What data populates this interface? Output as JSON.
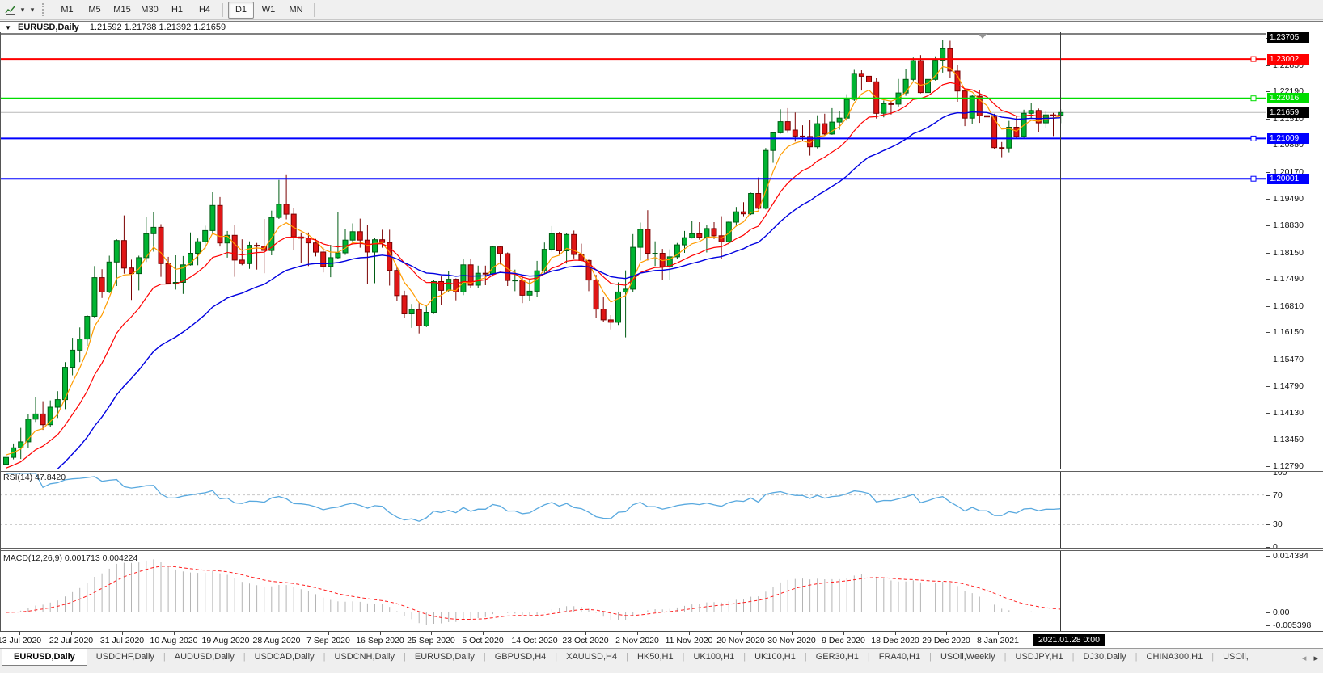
{
  "toolbar": {
    "timeframes": [
      {
        "label": "M1",
        "active": false
      },
      {
        "label": "M5",
        "active": false
      },
      {
        "label": "M15",
        "active": false
      },
      {
        "label": "M30",
        "active": false
      },
      {
        "label": "H1",
        "active": false
      },
      {
        "label": "H4",
        "active": false
      },
      {
        "label": "D1",
        "active": true
      },
      {
        "label": "W1",
        "active": false
      },
      {
        "label": "MN",
        "active": false
      }
    ]
  },
  "window": {
    "symbol": "EURUSD,Daily",
    "ohlc": "1.21592 1.21738 1.21392 1.21659"
  },
  "rsi": {
    "label": "RSI(14) 47.8420",
    "axis": [
      {
        "label": "100",
        "v": 100
      },
      {
        "label": "70",
        "v": 70
      },
      {
        "label": "30",
        "v": 30
      },
      {
        "label": "0",
        "v": 0
      }
    ],
    "levels": [
      70,
      30
    ]
  },
  "macd": {
    "label": "MACD(12,26,9) 0.001713 0.004224",
    "axis": [
      {
        "label": "0.014384",
        "v": 0.014384
      },
      {
        "label": "0.00",
        "v": 0
      },
      {
        "label": "-0.005398",
        "v": -0.005398
      }
    ]
  },
  "date_axis": {
    "labels": [
      "13 Jul 2020",
      "22 Jul 2020",
      "31 Jul 2020",
      "10 Aug 2020",
      "19 Aug 2020",
      "28 Aug 2020",
      "7 Sep 2020",
      "16 Sep 2020",
      "25 Sep 2020",
      "5 Oct 2020",
      "14 Oct 2020",
      "23 Oct 2020",
      "2 Nov 2020",
      "11 Nov 2020",
      "20 Nov 2020",
      "30 Nov 2020",
      "9 Dec 2020",
      "18 Dec 2020",
      "29 Dec 2020",
      "8 Jan 2021"
    ],
    "crosshair_label": "2021.01.28 0:00"
  },
  "tabs": [
    {
      "label": "EURUSD,Daily",
      "active": true
    },
    {
      "label": "USDCHF,Daily",
      "active": false
    },
    {
      "label": "AUDUSD,Daily",
      "active": false
    },
    {
      "label": "USDCAD,Daily",
      "active": false
    },
    {
      "label": "USDCNH,Daily",
      "active": false
    },
    {
      "label": "EURUSD,Daily",
      "active": false
    },
    {
      "label": "GBPUSD,H4",
      "active": false
    },
    {
      "label": "XAUUSD,H4",
      "active": false
    },
    {
      "label": "HK50,H1",
      "active": false
    },
    {
      "label": "UK100,H1",
      "active": false
    },
    {
      "label": "UK100,H1",
      "active": false
    },
    {
      "label": "GER30,H1",
      "active": false
    },
    {
      "label": "FRA40,H1",
      "active": false
    },
    {
      "label": "USOil,Weekly",
      "active": false
    },
    {
      "label": "USDJPY,H1",
      "active": false
    },
    {
      "label": "DJ30,Daily",
      "active": false
    },
    {
      "label": "CHINA300,H1",
      "active": false
    },
    {
      "label": "USOil,",
      "active": false
    }
  ],
  "tabs_nav": {
    "left": "◂",
    "right": "▸"
  },
  "colors": {
    "bull": "#00B432",
    "bull_stroke": "#005c14",
    "bear": "#DF1616",
    "bear_stroke": "#7a0000",
    "ma_fast": "#FF9C00",
    "ma_mid": "#FF0000",
    "ma_slow": "#0000E0",
    "rsi": "#59A9DF",
    "macd_hist": "#b4b4b4",
    "macd_signal": "#FF2020",
    "current_price_line": "#b8b8b8",
    "crosshair": "#3a3a3a"
  },
  "chart_data": {
    "type": "candlestick",
    "symbol": "EURUSD",
    "timeframe": "Daily",
    "current": {
      "open": 1.21592,
      "high": 1.21738,
      "low": 1.21392,
      "close": 1.21659
    },
    "current_price": 1.21659,
    "price_axis_ticks": [
      "1.23530",
      "1.22850",
      "1.22190",
      "1.21510",
      "1.20850",
      "1.20170",
      "1.19490",
      "1.18830",
      "1.18150",
      "1.17490",
      "1.16810",
      "1.16150",
      "1.15470",
      "1.14790",
      "1.14130",
      "1.13450",
      "1.12790"
    ],
    "horizontal_lines": [
      {
        "price": 1.23705,
        "label": "1.23705",
        "color": "#000000",
        "width": 1,
        "handle": false
      },
      {
        "price": 1.23002,
        "label": "1.23002",
        "color": "#FF0000",
        "width": 2,
        "handle": true
      },
      {
        "price": 1.22016,
        "label": "1.22016",
        "color": "#00DD00",
        "width": 2,
        "handle": true
      },
      {
        "price": 1.21009,
        "label": "1.21009",
        "color": "#0000FF",
        "width": 2,
        "handle": true
      },
      {
        "price": 1.20001,
        "label": "1.20001",
        "color": "#0000FF",
        "width": 2,
        "handle": true
      }
    ],
    "ma_periods": [
      5,
      13,
      28
    ],
    "ma_seeds": [
      1.131,
      1.127,
      1.1185
    ],
    "rsi_period": 14,
    "macd_params": [
      12,
      26,
      9
    ],
    "candles": [
      [
        1.1284,
        1.1317,
        1.128,
        1.1301
      ],
      [
        1.1301,
        1.1336,
        1.1296,
        1.1325
      ],
      [
        1.1325,
        1.1375,
        1.1297,
        1.134
      ],
      [
        1.134,
        1.1409,
        1.1325,
        1.1397
      ],
      [
        1.1397,
        1.1452,
        1.139,
        1.141
      ],
      [
        1.141,
        1.1442,
        1.137,
        1.1383
      ],
      [
        1.1383,
        1.1444,
        1.1378,
        1.1427
      ],
      [
        1.1427,
        1.1467,
        1.14,
        1.1446
      ],
      [
        1.1446,
        1.154,
        1.1422,
        1.1527
      ],
      [
        1.1527,
        1.1601,
        1.1507,
        1.157
      ],
      [
        1.157,
        1.1627,
        1.154,
        1.1598
      ],
      [
        1.1598,
        1.1658,
        1.1581,
        1.1655
      ],
      [
        1.1655,
        1.1781,
        1.165,
        1.1752
      ],
      [
        1.1752,
        1.1773,
        1.1701,
        1.1716
      ],
      [
        1.1716,
        1.1807,
        1.1713,
        1.1791
      ],
      [
        1.1791,
        1.1848,
        1.1731,
        1.1845
      ],
      [
        1.1845,
        1.1908,
        1.1762,
        1.1776
      ],
      [
        1.1776,
        1.1797,
        1.1696,
        1.1762
      ],
      [
        1.1762,
        1.1807,
        1.172,
        1.1802
      ],
      [
        1.1802,
        1.1905,
        1.1791,
        1.1862
      ],
      [
        1.1862,
        1.1916,
        1.1817,
        1.1878
      ],
      [
        1.1878,
        1.1886,
        1.1754,
        1.1787
      ],
      [
        1.1787,
        1.1804,
        1.1736,
        1.1738
      ],
      [
        1.1738,
        1.1808,
        1.1722,
        1.174
      ],
      [
        1.174,
        1.1806,
        1.1711,
        1.1784
      ],
      [
        1.1784,
        1.1865,
        1.1782,
        1.1813
      ],
      [
        1.1813,
        1.185,
        1.1783,
        1.1842
      ],
      [
        1.1842,
        1.1882,
        1.1825,
        1.187
      ],
      [
        1.187,
        1.1966,
        1.1863,
        1.1933
      ],
      [
        1.1933,
        1.1954,
        1.183,
        1.1839
      ],
      [
        1.1839,
        1.1869,
        1.1802,
        1.1858
      ],
      [
        1.1858,
        1.1884,
        1.1754,
        1.1796
      ],
      [
        1.1796,
        1.1848,
        1.1783,
        1.1787
      ],
      [
        1.1787,
        1.1843,
        1.1774,
        1.1833
      ],
      [
        1.1833,
        1.1839,
        1.1772,
        1.1831
      ],
      [
        1.1831,
        1.1899,
        1.1763,
        1.182
      ],
      [
        1.182,
        1.192,
        1.1808,
        1.1903
      ],
      [
        1.1903,
        1.1997,
        1.1899,
        1.1936
      ],
      [
        1.1936,
        1.2011,
        1.1898,
        1.1911
      ],
      [
        1.1911,
        1.1927,
        1.1822,
        1.1854
      ],
      [
        1.1854,
        1.1865,
        1.1789,
        1.1851
      ],
      [
        1.1851,
        1.1865,
        1.1781,
        1.1839
      ],
      [
        1.1839,
        1.1849,
        1.1805,
        1.1816
      ],
      [
        1.1816,
        1.1827,
        1.1765,
        1.178
      ],
      [
        1.178,
        1.1834,
        1.1753,
        1.1802
      ],
      [
        1.1802,
        1.1917,
        1.1799,
        1.1814
      ],
      [
        1.1814,
        1.1874,
        1.1809,
        1.1846
      ],
      [
        1.1846,
        1.1888,
        1.184,
        1.1867
      ],
      [
        1.1867,
        1.19,
        1.1827,
        1.1846
      ],
      [
        1.1846,
        1.1883,
        1.1737,
        1.1816
      ],
      [
        1.1816,
        1.1852,
        1.1738,
        1.1847
      ],
      [
        1.1847,
        1.1872,
        1.1827,
        1.184
      ],
      [
        1.184,
        1.1872,
        1.1732,
        1.177
      ],
      [
        1.177,
        1.1778,
        1.1693,
        1.1707
      ],
      [
        1.1707,
        1.1719,
        1.1651,
        1.1661
      ],
      [
        1.1661,
        1.1686,
        1.1626,
        1.1672
      ],
      [
        1.1672,
        1.1688,
        1.1612,
        1.1631
      ],
      [
        1.1631,
        1.1684,
        1.1628,
        1.1665
      ],
      [
        1.1665,
        1.1745,
        1.1661,
        1.1742
      ],
      [
        1.1742,
        1.1755,
        1.1684,
        1.172
      ],
      [
        1.172,
        1.1769,
        1.1717,
        1.1748
      ],
      [
        1.1748,
        1.175,
        1.1695,
        1.1716
      ],
      [
        1.1716,
        1.1798,
        1.1708,
        1.1784
      ],
      [
        1.1784,
        1.1798,
        1.1725,
        1.1733
      ],
      [
        1.1733,
        1.1782,
        1.1725,
        1.1763
      ],
      [
        1.1763,
        1.1782,
        1.1733,
        1.1761
      ],
      [
        1.1761,
        1.1831,
        1.1755,
        1.1829
      ],
      [
        1.1829,
        1.183,
        1.1785,
        1.1812
      ],
      [
        1.1812,
        1.1815,
        1.1731,
        1.1745
      ],
      [
        1.1745,
        1.1772,
        1.1718,
        1.1746
      ],
      [
        1.1746,
        1.1758,
        1.1688,
        1.1708
      ],
      [
        1.1708,
        1.1746,
        1.1694,
        1.1718
      ],
      [
        1.1718,
        1.1794,
        1.1703,
        1.1769
      ],
      [
        1.1769,
        1.184,
        1.176,
        1.1823
      ],
      [
        1.1823,
        1.1881,
        1.1817,
        1.1862
      ],
      [
        1.1862,
        1.1866,
        1.1811,
        1.1819
      ],
      [
        1.1819,
        1.1863,
        1.1787,
        1.186
      ],
      [
        1.186,
        1.187,
        1.18,
        1.181
      ],
      [
        1.181,
        1.1837,
        1.1793,
        1.1795
      ],
      [
        1.1795,
        1.1797,
        1.1718,
        1.1746
      ],
      [
        1.1746,
        1.1759,
        1.165,
        1.1673
      ],
      [
        1.1673,
        1.1704,
        1.164,
        1.1646
      ],
      [
        1.1646,
        1.1658,
        1.1622,
        1.164
      ],
      [
        1.164,
        1.174,
        1.1633,
        1.1716
      ],
      [
        1.1716,
        1.177,
        1.1602,
        1.1723
      ],
      [
        1.1723,
        1.1861,
        1.1715,
        1.1828
      ],
      [
        1.1828,
        1.189,
        1.1795,
        1.1873
      ],
      [
        1.1873,
        1.1921,
        1.1795,
        1.1813
      ],
      [
        1.1813,
        1.1843,
        1.1781,
        1.1813
      ],
      [
        1.1813,
        1.1824,
        1.1745,
        1.1779
      ],
      [
        1.1779,
        1.1823,
        1.1746,
        1.1804
      ],
      [
        1.1804,
        1.1839,
        1.1799,
        1.1834
      ],
      [
        1.1834,
        1.1869,
        1.1814,
        1.1852
      ],
      [
        1.1852,
        1.1894,
        1.185,
        1.1862
      ],
      [
        1.1862,
        1.1891,
        1.1847,
        1.1853
      ],
      [
        1.1853,
        1.1884,
        1.1815,
        1.1875
      ],
      [
        1.1875,
        1.1891,
        1.1849,
        1.1857
      ],
      [
        1.1857,
        1.1906,
        1.1799,
        1.1842
      ],
      [
        1.1842,
        1.1895,
        1.1835,
        1.1891
      ],
      [
        1.1891,
        1.1929,
        1.188,
        1.1917
      ],
      [
        1.1917,
        1.1941,
        1.1906,
        1.1912
      ],
      [
        1.1912,
        1.1965,
        1.1909,
        1.1963
      ],
      [
        1.1963,
        1.2003,
        1.1923,
        1.1926
      ],
      [
        1.1926,
        1.2077,
        1.1923,
        1.2071
      ],
      [
        1.2071,
        1.2118,
        1.204,
        1.2115
      ],
      [
        1.2115,
        1.2174,
        1.2113,
        1.2143
      ],
      [
        1.2143,
        1.2177,
        1.2115,
        1.2122
      ],
      [
        1.2122,
        1.2166,
        1.2093,
        1.2107
      ],
      [
        1.2107,
        1.2134,
        1.2095,
        1.2106
      ],
      [
        1.2106,
        1.2147,
        1.2058,
        1.208
      ],
      [
        1.208,
        1.2159,
        1.2076,
        1.2138
      ],
      [
        1.2138,
        1.2163,
        1.2109,
        1.2112
      ],
      [
        1.2112,
        1.2177,
        1.211,
        1.2142
      ],
      [
        1.2142,
        1.2169,
        1.2123,
        1.2152
      ],
      [
        1.2152,
        1.2212,
        1.2145,
        1.2199
      ],
      [
        1.2199,
        1.2273,
        1.2195,
        1.2264
      ],
      [
        1.2264,
        1.2272,
        1.2221,
        1.2257
      ],
      [
        1.2257,
        1.2272,
        1.2129,
        1.2243
      ],
      [
        1.2243,
        1.2252,
        1.2151,
        1.2164
      ],
      [
        1.2164,
        1.2196,
        1.2154,
        1.2188
      ],
      [
        1.2188,
        1.2196,
        1.2161,
        1.2187
      ],
      [
        1.2187,
        1.225,
        1.2181,
        1.2215
      ],
      [
        1.2215,
        1.2276,
        1.2208,
        1.2249
      ],
      [
        1.2249,
        1.2304,
        1.2245,
        1.2296
      ],
      [
        1.2296,
        1.231,
        1.2214,
        1.2216
      ],
      [
        1.2216,
        1.2311,
        1.2199,
        1.2249
      ],
      [
        1.2249,
        1.2307,
        1.2246,
        1.2297
      ],
      [
        1.2297,
        1.2349,
        1.2266,
        1.2326
      ],
      [
        1.2326,
        1.2346,
        1.2252,
        1.227
      ],
      [
        1.227,
        1.2285,
        1.2193,
        1.222
      ],
      [
        1.222,
        1.2225,
        1.2132,
        1.2152
      ],
      [
        1.2152,
        1.221,
        1.2137,
        1.2207
      ],
      [
        1.2207,
        1.2223,
        1.214,
        1.2158
      ],
      [
        1.2158,
        1.2179,
        1.211,
        1.2155
      ],
      [
        1.2155,
        1.2163,
        1.2075,
        1.2078
      ],
      [
        1.2078,
        1.2092,
        1.2054,
        1.2077
      ],
      [
        1.2077,
        1.2145,
        1.2066,
        1.2129
      ],
      [
        1.2129,
        1.2158,
        1.2101,
        1.2106
      ],
      [
        1.2106,
        1.2173,
        1.2103,
        1.2164
      ],
      [
        1.2164,
        1.2189,
        1.2151,
        1.2171
      ],
      [
        1.2171,
        1.2176,
        1.2116,
        1.214
      ],
      [
        1.214,
        1.217,
        1.2126,
        1.216
      ],
      [
        1.216,
        1.2165,
        1.2107,
        1.21592
      ],
      [
        1.21592,
        1.21738,
        1.21392,
        1.21659
      ]
    ]
  }
}
